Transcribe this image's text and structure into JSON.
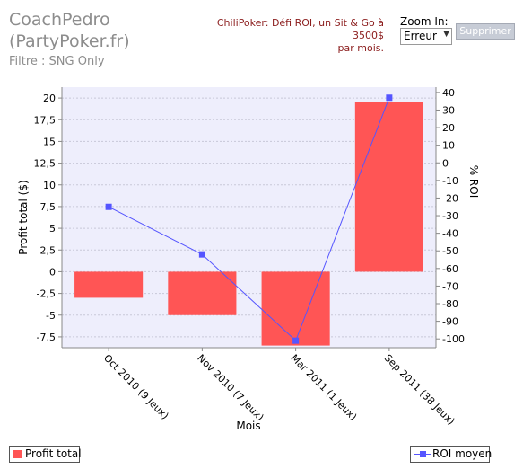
{
  "header": {
    "title_line1": "CoachPedro",
    "title_line2": "(PartyPoker.fr)",
    "filter": "Filtre : SNG Only",
    "promo_line1": "ChiliPoker: Défi ROI, un Sit & Go à 3500$",
    "promo_line2": "par mois.",
    "zoom_label": "Zoom In:",
    "zoom_value": "Erreur",
    "delete_label": "Supprimer"
  },
  "colors": {
    "bar": "#ff5555",
    "line": "#5555ff",
    "plot_bg": "#eeeefc",
    "grid": "#c8c8d8"
  },
  "chart_data": {
    "type": "bar",
    "categories": [
      "Oct 2010 (9 Jeux)",
      "Nov 2010 (7 Jeux)",
      "Mar 2011 (1 Jeux)",
      "Sep 2011 (38 Jeux)"
    ],
    "series": [
      {
        "name": "Profit total",
        "type": "bar",
        "axis": "left",
        "values": [
          -3.0,
          -5.0,
          -8.5,
          19.5
        ]
      },
      {
        "name": "ROI moyen",
        "type": "line",
        "axis": "right",
        "values": [
          -25,
          -52,
          -101,
          37
        ]
      }
    ],
    "xlabel": "Mois",
    "ylabel": "Profit total ($)",
    "y2label": "% ROI",
    "ylim": [
      -8.75,
      21.25
    ],
    "y2lim": [
      -105,
      43
    ],
    "yticks": [
      "20",
      "17,5",
      "15",
      "12,5",
      "10",
      "7,5",
      "5",
      "2,5",
      "0",
      "-2,5",
      "-5",
      "-7,5"
    ],
    "ytick_values": [
      20,
      17.5,
      15,
      12.5,
      10,
      7.5,
      5,
      2.5,
      0,
      -2.5,
      -5,
      -7.5
    ],
    "y2ticks": [
      "40",
      "30",
      "20",
      "10",
      "0",
      "-10",
      "-20",
      "-30",
      "-40",
      "-50",
      "-60",
      "-70",
      "-80",
      "-90",
      "-100"
    ],
    "y2tick_values": [
      40,
      30,
      20,
      10,
      0,
      -10,
      -20,
      -30,
      -40,
      -50,
      -60,
      -70,
      -80,
      -90,
      -100
    ],
    "grid": true,
    "legend": "bottom"
  }
}
